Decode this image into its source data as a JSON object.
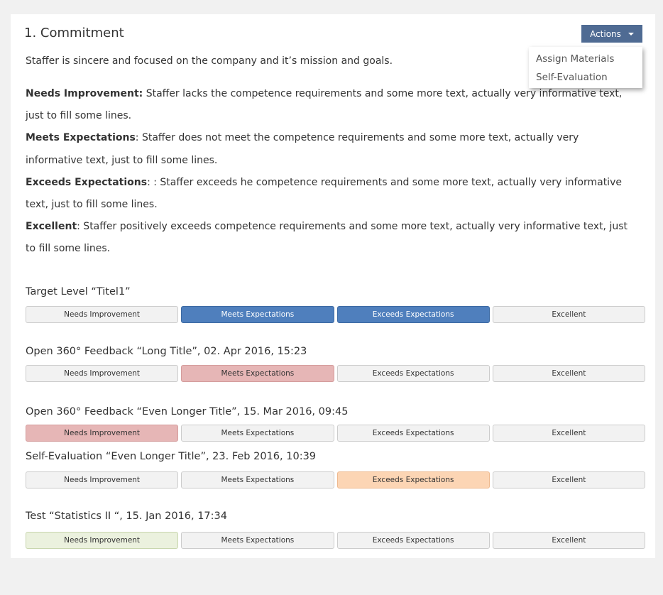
{
  "title": "1. Commitment",
  "actions": {
    "label": "Actions",
    "menu": [
      "Assign Materials",
      "Self-Evaluation"
    ]
  },
  "description": "Staffer is sincere and focused on the company and it’s mission and goals.",
  "criteria": [
    {
      "term": "Needs Improvement:",
      "text": "  Staffer lacks the competence requirements and some more text, actually very informative text, just to fill some lines."
    },
    {
      "term": "Meets Expectations",
      "text": ": Staffer does not meet the competence requirements and some more text, actually very informative text, just to fill some lines."
    },
    {
      "term": "Exceeds Expectations",
      "text": ": : Staffer exceeds he competence requirements and some more text, actually very informative text, just to fill some lines."
    },
    {
      "term": "Excellent",
      "text": ": Staffer positively exceeds competence requirements and some more text, actually very informative text, just to fill some lines."
    }
  ],
  "levels": [
    "Needs Improvement",
    "Meets Expectations",
    "Exceeds Expectations",
    "Excellent"
  ],
  "colors": {
    "target": "#4f7fbd",
    "feedback": "#e6b6b6",
    "self": "#fcd5b4",
    "test": "#ebf1de"
  },
  "sections": [
    {
      "label": "Target Level “Titel1”",
      "selected": [
        1,
        2
      ],
      "style": "blue"
    },
    {
      "label": "Open 360° Feedback “Long Title”, 02. Apr 2016, 15:23",
      "selected": [
        1
      ],
      "style": "red"
    },
    {
      "label": "Open 360° Feedback “Even Longer Title”, 15. Mar 2016, 09:45",
      "selected": [
        0
      ],
      "style": "red"
    },
    {
      "label": "Self-Evaluation “Even Longer Title”, 23. Feb 2016,  10:39",
      "selected": [
        2
      ],
      "style": "orange"
    },
    {
      "label": "Test “Statistics II “, 15. Jan 2016, 17:34",
      "selected": [
        0
      ],
      "style": "green"
    }
  ]
}
